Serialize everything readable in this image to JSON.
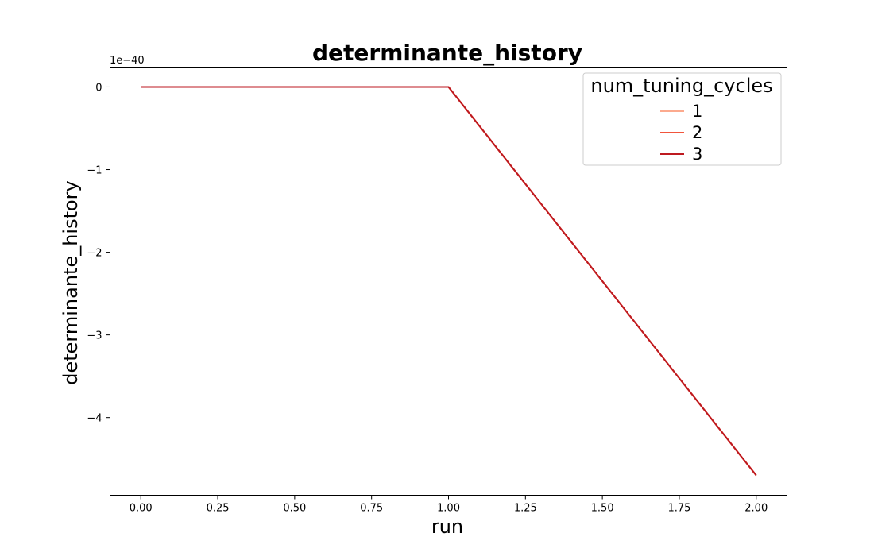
{
  "chart_data": {
    "type": "line",
    "title": "determinante_history",
    "xlabel": "run",
    "ylabel": "determinante_history",
    "y_offset_label": "1e−40",
    "xlim": [
      -0.1,
      2.1
    ],
    "ylim": [
      -4.94,
      0.24
    ],
    "x_ticks": [
      0.0,
      0.25,
      0.5,
      0.75,
      1.0,
      1.25,
      1.5,
      1.75,
      2.0
    ],
    "x_tick_labels": [
      "0.00",
      "0.25",
      "0.50",
      "0.75",
      "1.00",
      "1.25",
      "1.50",
      "1.75",
      "2.00"
    ],
    "y_ticks": [
      0,
      -1,
      -2,
      -3,
      -4
    ],
    "y_tick_labels": [
      "0",
      "−1",
      "−2",
      "−3",
      "−4"
    ],
    "grid": false,
    "legend": {
      "title": "num_tuning_cycles",
      "placement": "top-right"
    },
    "series": [
      {
        "name": "1",
        "color": "#fcaa8e",
        "x": [
          0,
          1,
          2
        ],
        "y": [
          0,
          0,
          -4.7
        ]
      },
      {
        "name": "2",
        "color": "#f1553c",
        "x": [
          0,
          1,
          2
        ],
        "y": [
          0,
          0,
          -4.7
        ]
      },
      {
        "name": "3",
        "color": "#be1a20",
        "x": [
          0,
          1,
          2
        ],
        "y": [
          0,
          0,
          -4.7
        ]
      }
    ]
  }
}
